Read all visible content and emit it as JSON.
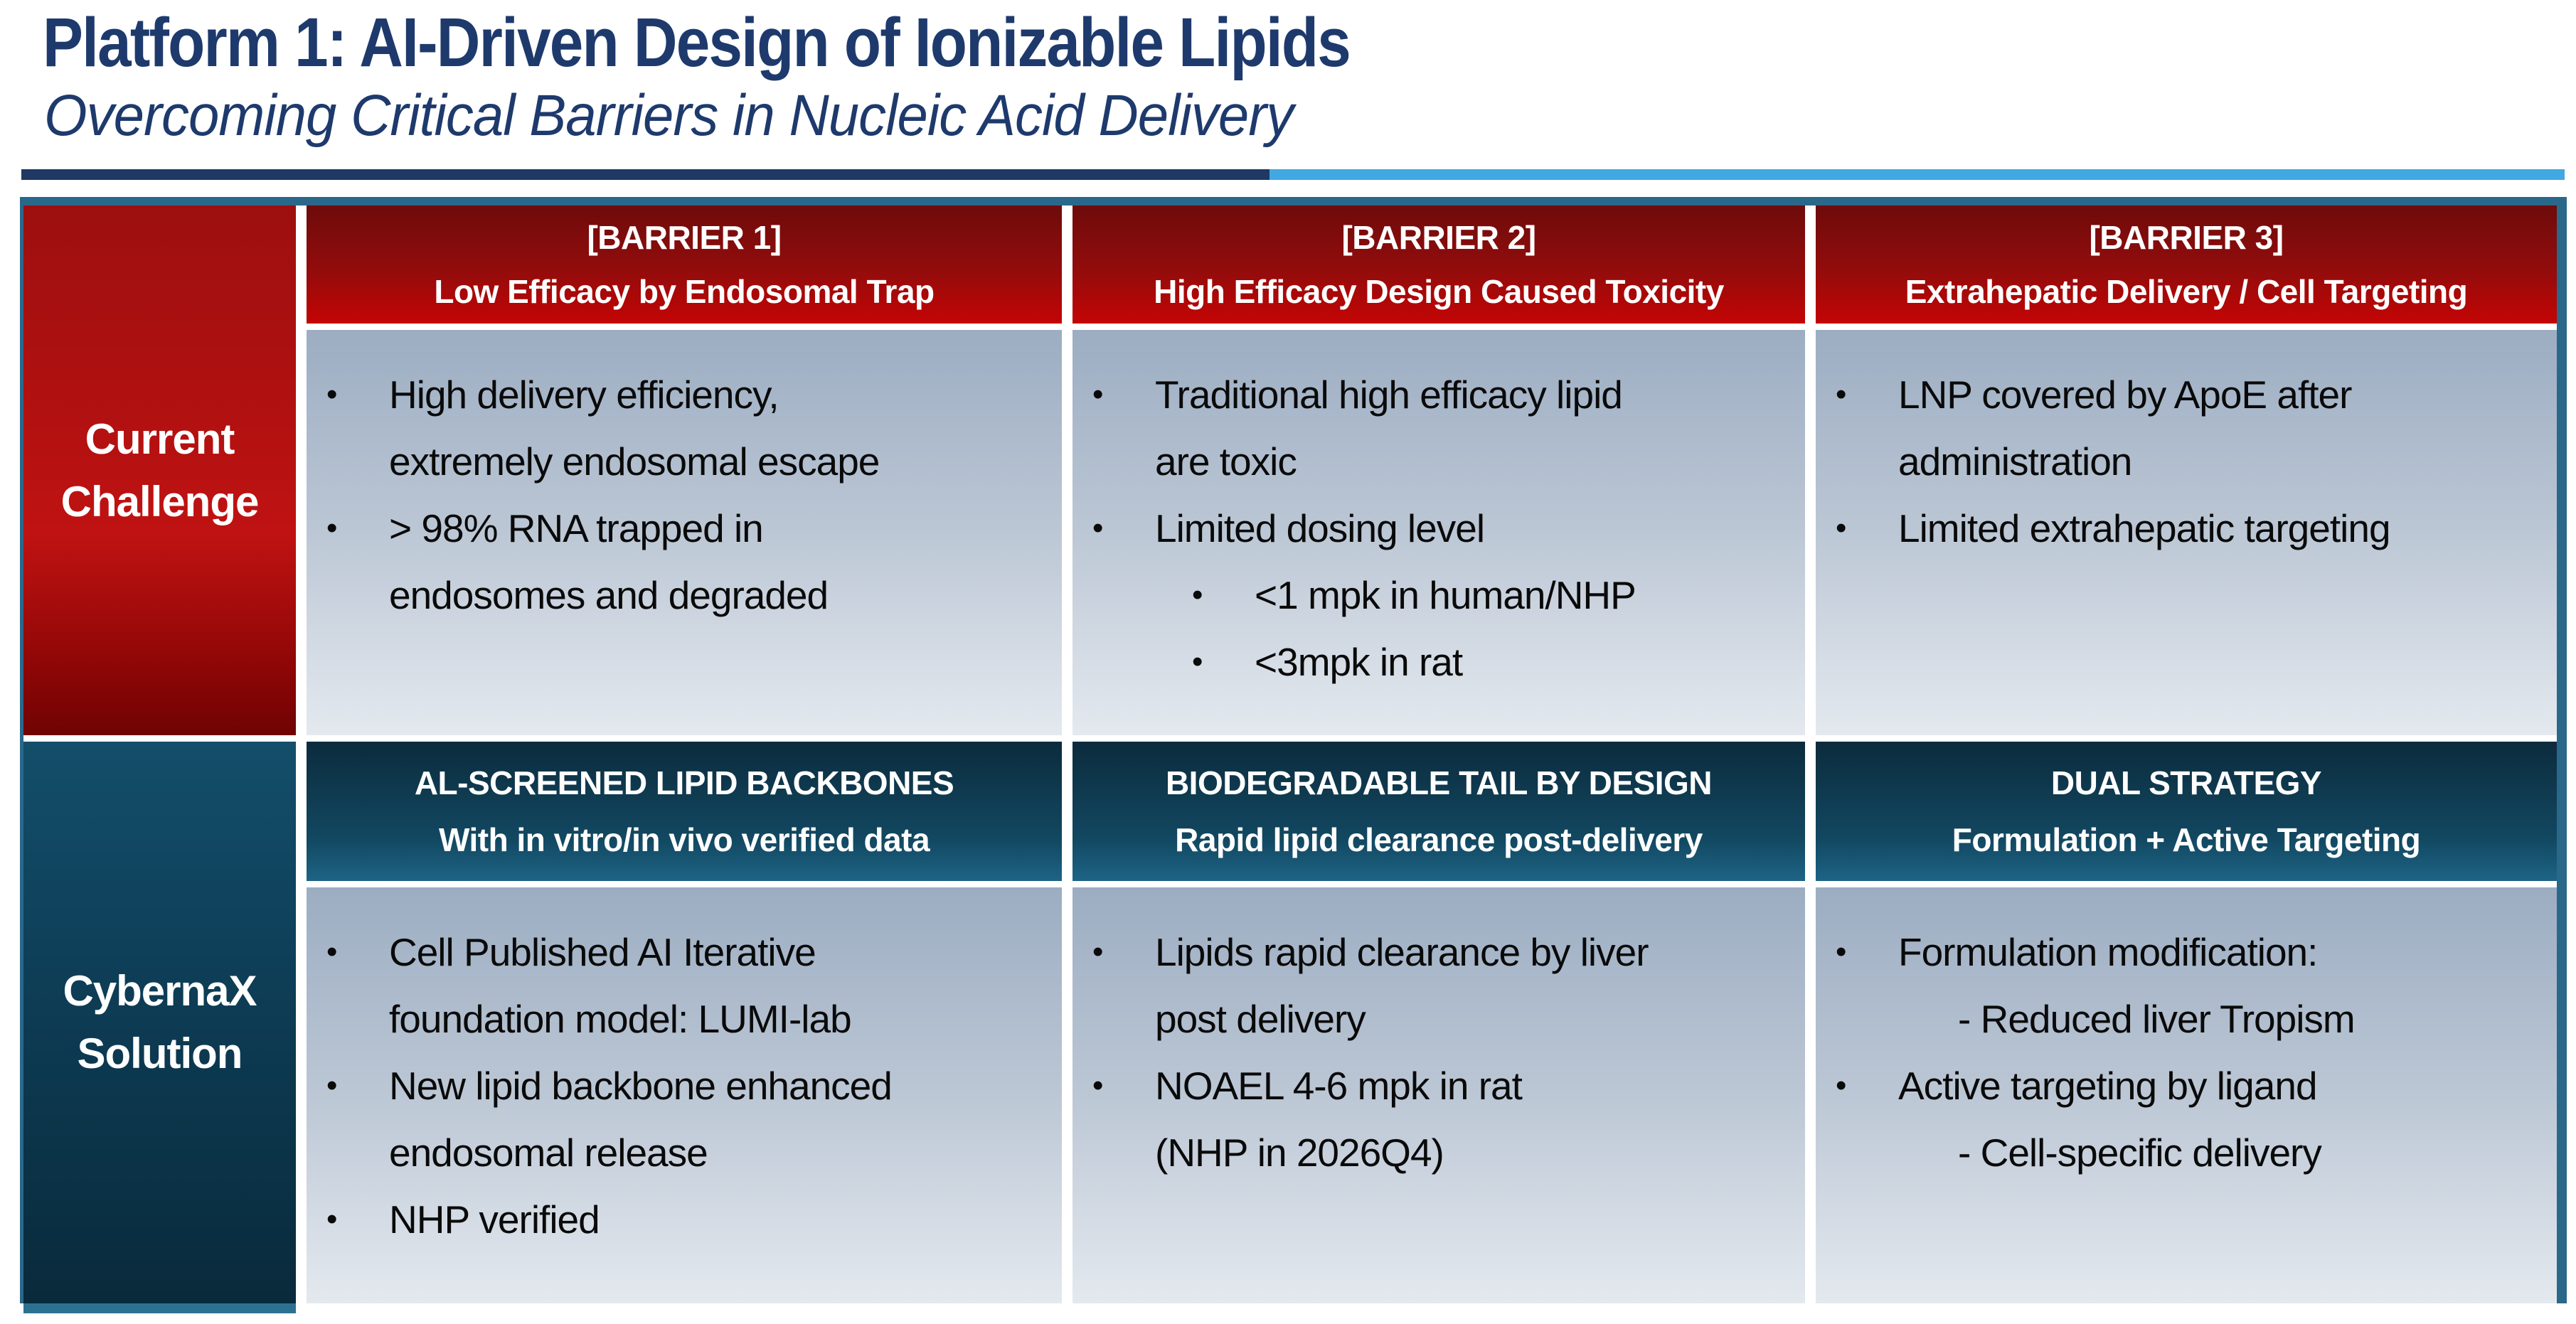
{
  "slide": {
    "title": "Platform 1: AI-Driven Design of Ionizable Lipids",
    "subtitle": "Overcoming Critical Barriers in Nucleic Acid Delivery"
  },
  "row_labels": {
    "challenge": "Current\nChallenge",
    "solution": "CybernaX\nSolution"
  },
  "columns": [
    {
      "barrier_tag": "[BARRIER 1]",
      "barrier_title": "Low Efficacy by Endosomal Trap",
      "challenge_items": [
        {
          "text": "High delivery efficiency,\nextremely endosomal escape",
          "level": 0,
          "bullet": true
        },
        {
          "text": "> 98% RNA trapped in\nendosomes and degraded",
          "level": 0,
          "bullet": true
        }
      ],
      "solution_tag": "AL-SCREENED LIPID BACKBONES",
      "solution_subtitle": "With in vitro/in vivo verified data",
      "solution_items": [
        {
          "text": "Cell Published AI Iterative\nfoundation model: LUMI-lab",
          "level": 0,
          "bullet": true
        },
        {
          "text": "New lipid backbone enhanced\nendosomal release",
          "level": 0,
          "bullet": true
        },
        {
          "text": "NHP verified",
          "level": 0,
          "bullet": true
        }
      ]
    },
    {
      "barrier_tag": "[BARRIER 2]",
      "barrier_title": "High Efficacy Design Caused Toxicity",
      "challenge_items": [
        {
          "text": "Traditional high efficacy lipid\nare toxic",
          "level": 0,
          "bullet": true
        },
        {
          "text": "Limited dosing level",
          "level": 0,
          "bullet": true
        },
        {
          "text": "<1 mpk in human/NHP",
          "level": 1,
          "bullet": true
        },
        {
          "text": "<3mpk in rat",
          "level": 1,
          "bullet": true
        }
      ],
      "solution_tag": "BIODEGRADABLE TAIL BY DESIGN",
      "solution_subtitle": "Rapid lipid clearance post-delivery",
      "solution_items": [
        {
          "text": "Lipids rapid clearance by liver\npost delivery",
          "level": 0,
          "bullet": true
        },
        {
          "text": "NOAEL 4-6 mpk in rat\n(NHP in 2026Q4)",
          "level": 0,
          "bullet": true
        }
      ]
    },
    {
      "barrier_tag": "[BARRIER 3]",
      "barrier_title": "Extrahepatic Delivery / Cell Targeting",
      "challenge_items": [
        {
          "text": "LNP covered by ApoE after\nadministration",
          "level": 0,
          "bullet": true
        },
        {
          "text": "Limited extrahepatic targeting",
          "level": 0,
          "bullet": true
        }
      ],
      "solution_tag": "DUAL STRATEGY",
      "solution_subtitle": "Formulation + Active Targeting",
      "solution_items": [
        {
          "text": "Formulation modification:",
          "level": 0,
          "bullet": true
        },
        {
          "text": "- Reduced liver Tropism",
          "level": 1,
          "bullet": false
        },
        {
          "text": "Active targeting by ligand",
          "level": 0,
          "bullet": true
        },
        {
          "text": "- Cell-specific delivery",
          "level": 1,
          "bullet": false
        }
      ]
    }
  ],
  "colors": {
    "title_navy": "#1e3a6d",
    "rule_dark_navy": "#1f3864",
    "rule_light_blue": "#41a8e1",
    "table_border_teal": "#2a688a",
    "barrier_red_top": "#6e0b0b",
    "barrier_red_bottom": "#c40404",
    "label_red_mid": "#c01212",
    "solution_teal_top": "#0c2b3d",
    "solution_teal_bottom": "#1d6486",
    "cell_gradient_top": "#9cadc2",
    "cell_gradient_bottom": "#e4e9ef",
    "header_text": "#ffffff",
    "body_text": "#0a0a0a"
  }
}
